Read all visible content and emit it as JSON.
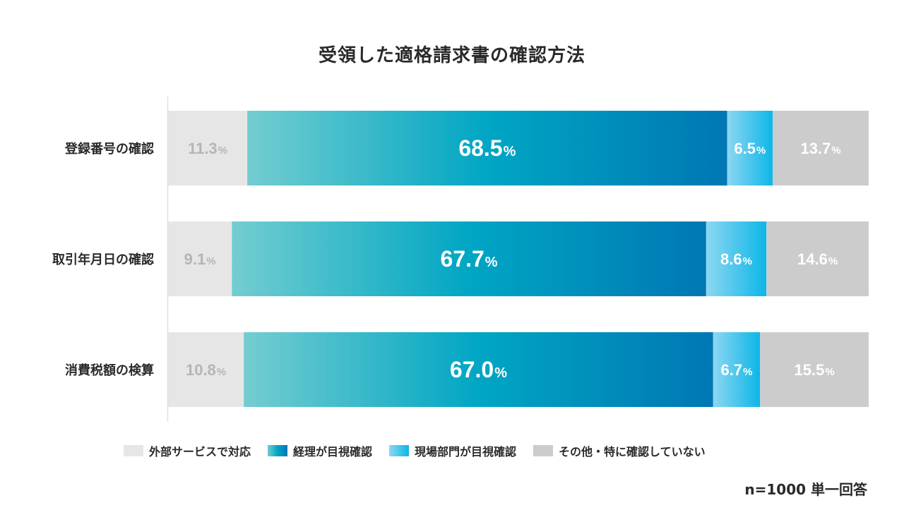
{
  "chart_data": {
    "type": "bar",
    "orientation": "horizontal",
    "stacked": "100%",
    "title": "受領した適格請求書の確認方法",
    "categories": [
      "登録番号の確認",
      "取引年月日の確認",
      "消費税額の検算"
    ],
    "series": [
      {
        "name": "外部サービスで対応",
        "values": [
          11.3,
          9.1,
          10.8
        ],
        "color": "#e6e6e6",
        "label_color": "#b5b5b5"
      },
      {
        "name": "経理が目視確認",
        "values": [
          68.5,
          67.7,
          67.0
        ],
        "color": "#0a7fb5",
        "gradient": [
          "#73cdd0",
          "#00a6c4",
          "#0077b3"
        ],
        "label_color": "#ffffff"
      },
      {
        "name": "現場部門が目視確認",
        "values": [
          6.5,
          8.6,
          6.7
        ],
        "color": "#18b4e6",
        "gradient": [
          "#8cd7f2",
          "#0db6e8"
        ],
        "label_color": "#ffffff"
      },
      {
        "name": "その他・特に確認していない",
        "values": [
          13.7,
          14.6,
          15.5
        ],
        "color": "#cccccc",
        "label_color": "#ffffff"
      }
    ],
    "value_labels": {
      "登録番号の確認": [
        "11.3",
        "68.5",
        "6.5",
        "13.7"
      ],
      "取引年月日の確認": [
        "9.1",
        "67.7",
        "8.6",
        "14.6"
      ],
      "消費税額の検算": [
        "10.8",
        "67.0",
        "6.7",
        "15.5"
      ]
    },
    "unit": "%",
    "legend_position": "bottom",
    "note": "n=1000 単一回答",
    "grid": false
  }
}
